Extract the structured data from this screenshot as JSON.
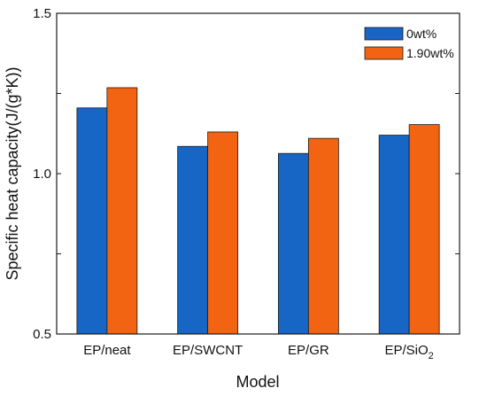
{
  "chart_data": {
    "type": "bar",
    "categories": [
      "EP/neat",
      "EP/SWCNT",
      "EP/GR",
      "EP/SiO2"
    ],
    "series": [
      {
        "name": "0wt%",
        "values": [
          1.205,
          1.085,
          1.063,
          1.12
        ],
        "color": "#1766c5"
      },
      {
        "name": "1.90wt%",
        "values": [
          1.268,
          1.13,
          1.11,
          1.153
        ],
        "color": "#f26411"
      }
    ],
    "xlabel": "Model",
    "ylabel": "Specific heat capacity(J/(g*K))",
    "ylim": [
      0.5,
      1.5
    ],
    "yticks": [
      "0.5",
      "1.0",
      "1.5"
    ],
    "grid": false,
    "legend_position": "top-right"
  }
}
